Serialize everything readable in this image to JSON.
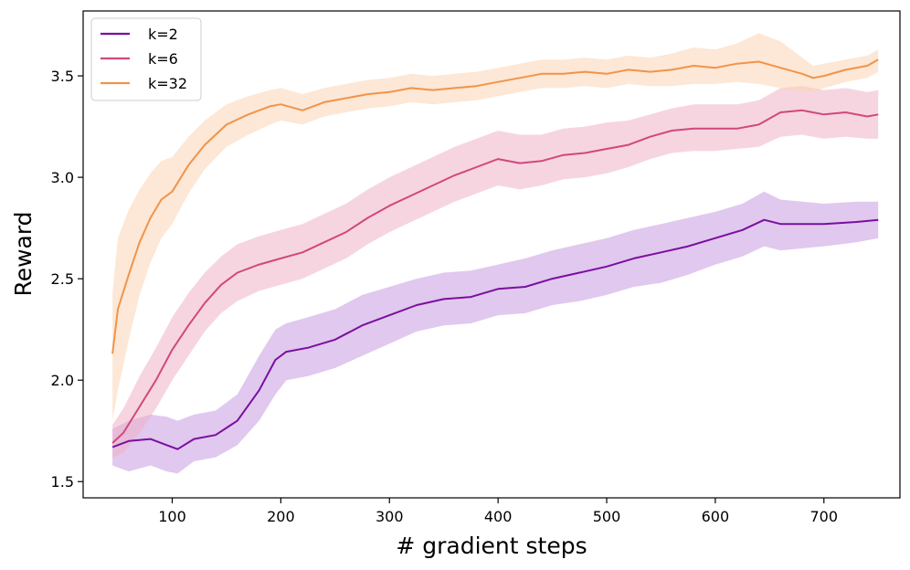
{
  "chart_data": {
    "type": "line",
    "title": "",
    "xlabel": "# gradient steps",
    "ylabel": "Reward",
    "xlim": [
      18,
      770
    ],
    "ylim": [
      1.42,
      3.82
    ],
    "xticks": [
      100,
      200,
      300,
      400,
      500,
      600,
      700
    ],
    "yticks": [
      1.5,
      2.0,
      2.5,
      3.0,
      3.5
    ],
    "xtick_labels": [
      "100",
      "200",
      "300",
      "400",
      "500",
      "600",
      "700"
    ],
    "ytick_labels": [
      "1.5",
      "2.0",
      "2.5",
      "3.0",
      "3.5"
    ],
    "grid": false,
    "legend_position": "top-left",
    "series": [
      {
        "name": "k=2",
        "color": "#7b0f9f",
        "band_color": "#c79be0",
        "x": [
          45,
          60,
          80,
          95,
          105,
          120,
          140,
          160,
          180,
          195,
          205,
          225,
          250,
          275,
          300,
          325,
          350,
          375,
          400,
          425,
          450,
          475,
          500,
          525,
          550,
          575,
          600,
          625,
          645,
          660,
          700,
          730,
          750
        ],
        "values": [
          1.67,
          1.7,
          1.71,
          1.68,
          1.66,
          1.71,
          1.73,
          1.8,
          1.95,
          2.1,
          2.14,
          2.16,
          2.2,
          2.27,
          2.32,
          2.37,
          2.4,
          2.41,
          2.45,
          2.46,
          2.5,
          2.53,
          2.56,
          2.6,
          2.63,
          2.66,
          2.7,
          2.74,
          2.79,
          2.77,
          2.77,
          2.78,
          2.79
        ],
        "lower": [
          1.58,
          1.55,
          1.58,
          1.55,
          1.54,
          1.6,
          1.62,
          1.68,
          1.8,
          1.93,
          2.0,
          2.02,
          2.06,
          2.12,
          2.18,
          2.24,
          2.27,
          2.28,
          2.32,
          2.33,
          2.37,
          2.39,
          2.42,
          2.46,
          2.48,
          2.52,
          2.57,
          2.61,
          2.66,
          2.64,
          2.66,
          2.68,
          2.7
        ],
        "upper": [
          1.76,
          1.8,
          1.83,
          1.82,
          1.8,
          1.83,
          1.85,
          1.93,
          2.12,
          2.25,
          2.28,
          2.31,
          2.35,
          2.42,
          2.46,
          2.5,
          2.53,
          2.54,
          2.57,
          2.6,
          2.64,
          2.67,
          2.7,
          2.74,
          2.77,
          2.8,
          2.83,
          2.87,
          2.93,
          2.89,
          2.87,
          2.88,
          2.88
        ]
      },
      {
        "name": "k=6",
        "color": "#d1487c",
        "band_color": "#eeb3c9",
        "x": [
          45,
          55,
          70,
          85,
          100,
          115,
          130,
          145,
          160,
          180,
          200,
          220,
          240,
          260,
          280,
          300,
          320,
          340,
          360,
          380,
          400,
          420,
          440,
          460,
          480,
          500,
          520,
          540,
          560,
          580,
          600,
          620,
          640,
          660,
          680,
          700,
          720,
          740,
          750
        ],
        "values": [
          1.69,
          1.74,
          1.87,
          2.0,
          2.15,
          2.27,
          2.38,
          2.47,
          2.53,
          2.57,
          2.6,
          2.63,
          2.68,
          2.73,
          2.8,
          2.86,
          2.91,
          2.96,
          3.01,
          3.05,
          3.09,
          3.07,
          3.08,
          3.11,
          3.12,
          3.14,
          3.16,
          3.2,
          3.23,
          3.24,
          3.24,
          3.24,
          3.26,
          3.32,
          3.33,
          3.31,
          3.32,
          3.3,
          3.31
        ],
        "lower": [
          1.62,
          1.64,
          1.74,
          1.86,
          2.0,
          2.12,
          2.24,
          2.33,
          2.39,
          2.44,
          2.47,
          2.5,
          2.55,
          2.6,
          2.67,
          2.73,
          2.78,
          2.83,
          2.88,
          2.92,
          2.96,
          2.94,
          2.96,
          2.99,
          3.0,
          3.02,
          3.05,
          3.09,
          3.12,
          3.13,
          3.13,
          3.14,
          3.15,
          3.2,
          3.21,
          3.19,
          3.2,
          3.19,
          3.19
        ],
        "upper": [
          1.78,
          1.86,
          2.02,
          2.16,
          2.31,
          2.43,
          2.53,
          2.61,
          2.67,
          2.71,
          2.74,
          2.77,
          2.82,
          2.87,
          2.94,
          3.0,
          3.05,
          3.1,
          3.15,
          3.19,
          3.23,
          3.21,
          3.21,
          3.24,
          3.25,
          3.27,
          3.28,
          3.31,
          3.34,
          3.36,
          3.36,
          3.36,
          3.38,
          3.44,
          3.45,
          3.43,
          3.44,
          3.42,
          3.43
        ]
      },
      {
        "name": "k=32",
        "color": "#f0944a",
        "band_color": "#fcd3b4",
        "x": [
          45,
          50,
          60,
          70,
          80,
          90,
          100,
          115,
          130,
          150,
          170,
          190,
          200,
          220,
          240,
          260,
          280,
          300,
          320,
          340,
          360,
          380,
          400,
          420,
          440,
          460,
          480,
          500,
          520,
          540,
          560,
          580,
          600,
          620,
          640,
          660,
          680,
          690,
          700,
          720,
          740,
          750
        ],
        "values": [
          2.13,
          2.35,
          2.52,
          2.68,
          2.8,
          2.89,
          2.93,
          3.06,
          3.16,
          3.26,
          3.31,
          3.35,
          3.36,
          3.33,
          3.37,
          3.39,
          3.41,
          3.42,
          3.44,
          3.43,
          3.44,
          3.45,
          3.47,
          3.49,
          3.51,
          3.51,
          3.52,
          3.51,
          3.53,
          3.52,
          3.53,
          3.55,
          3.54,
          3.56,
          3.57,
          3.54,
          3.51,
          3.49,
          3.5,
          3.53,
          3.55,
          3.58
        ],
        "lower": [
          1.8,
          1.95,
          2.2,
          2.42,
          2.58,
          2.7,
          2.77,
          2.92,
          3.04,
          3.15,
          3.21,
          3.26,
          3.28,
          3.26,
          3.3,
          3.32,
          3.34,
          3.35,
          3.37,
          3.36,
          3.37,
          3.38,
          3.4,
          3.42,
          3.44,
          3.44,
          3.45,
          3.44,
          3.46,
          3.45,
          3.45,
          3.46,
          3.46,
          3.47,
          3.46,
          3.44,
          3.42,
          3.42,
          3.44,
          3.47,
          3.49,
          3.52
        ],
        "upper": [
          2.43,
          2.7,
          2.84,
          2.94,
          3.02,
          3.08,
          3.1,
          3.2,
          3.28,
          3.36,
          3.4,
          3.43,
          3.44,
          3.41,
          3.44,
          3.46,
          3.48,
          3.49,
          3.51,
          3.5,
          3.51,
          3.52,
          3.54,
          3.56,
          3.58,
          3.58,
          3.59,
          3.58,
          3.6,
          3.59,
          3.61,
          3.64,
          3.63,
          3.66,
          3.71,
          3.67,
          3.59,
          3.55,
          3.56,
          3.58,
          3.6,
          3.63
        ]
      }
    ]
  }
}
